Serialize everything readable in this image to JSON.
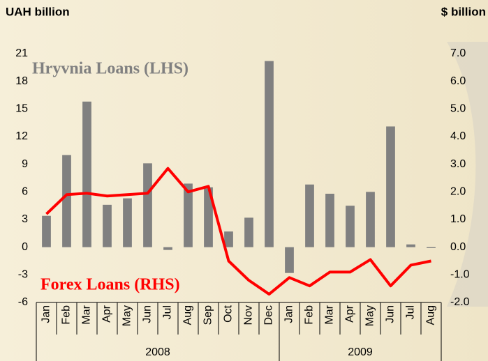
{
  "chart_data": {
    "type": "bar_line",
    "y_axis_label": "UAH billion",
    "y2_axis_label": "$ billion",
    "categories": [
      "Jan",
      "Feb",
      "Mar",
      "Apr",
      "May",
      "Jun",
      "Jul",
      "Aug",
      "Sep",
      "Oct",
      "Nov",
      "Dec",
      "Jan",
      "Feb",
      "Mar",
      "Apr",
      "May",
      "Jun",
      "Jul",
      "Aug"
    ],
    "groups": [
      "2008",
      "2009"
    ],
    "series": [
      {
        "name": "Hryvnia Loans (LHS)",
        "type": "bar",
        "color": "#808080",
        "values": [
          3.4,
          10.0,
          15.8,
          4.6,
          5.3,
          9.1,
          -0.3,
          6.9,
          6.5,
          1.7,
          3.2,
          20.2,
          -2.8,
          6.8,
          5.8,
          4.5,
          6.0,
          13.1,
          0.3,
          -0.1
        ]
      },
      {
        "name": "Forex Loans (RHS)",
        "type": "line",
        "axis": "y2",
        "color": "#ff0000",
        "values": [
          1.2,
          1.9,
          1.95,
          1.85,
          1.9,
          1.95,
          2.85,
          2.0,
          2.2,
          -0.5,
          -1.2,
          -1.7,
          -1.1,
          -1.4,
          -0.9,
          -0.9,
          -0.45,
          -1.4,
          -0.65,
          -0.5
        ]
      }
    ],
    "ylim": [
      -6,
      21
    ],
    "yticks": [
      -6,
      -3,
      0,
      3,
      6,
      9,
      12,
      15,
      18,
      21
    ],
    "y2lim": [
      -2,
      7
    ],
    "y2ticks": [
      {
        "value": -2,
        "label": "-2.0"
      },
      {
        "value": -1,
        "label": "-1.0"
      },
      {
        "value": 0,
        "label": "0.0"
      },
      {
        "value": 1,
        "label": "1.0"
      },
      {
        "value": 2,
        "label": "2.0"
      },
      {
        "value": 3,
        "label": "3.0"
      },
      {
        "value": 4,
        "label": "4.0"
      },
      {
        "value": 5,
        "label": "5.0"
      },
      {
        "value": 6,
        "label": "6.0"
      },
      {
        "value": 7,
        "label": "7.0"
      }
    ]
  }
}
